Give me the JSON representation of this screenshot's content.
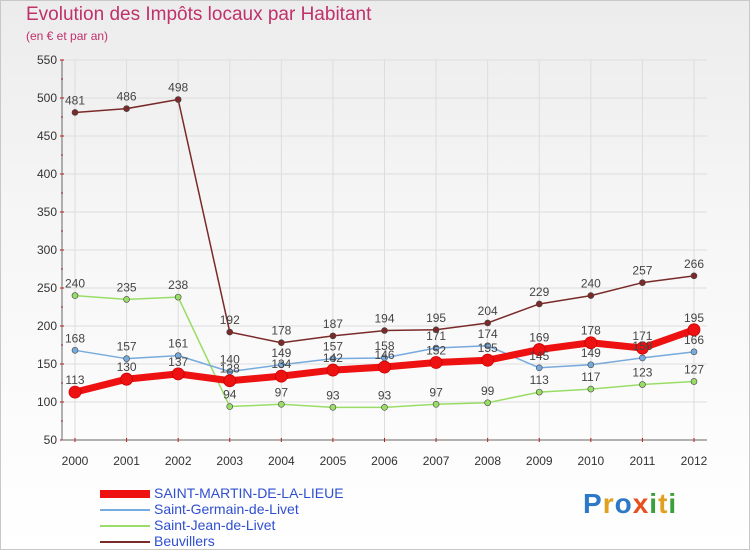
{
  "header": {
    "title": "Evolution des Impôts locaux par Habitant",
    "subtitle": "(en € et par an)"
  },
  "brand": {
    "logo_letters": [
      {
        "ch": "P",
        "color": "#2e78c8"
      },
      {
        "ch": "r",
        "color": "#e0a020"
      },
      {
        "ch": "o",
        "color": "#2e78c8"
      },
      {
        "ch": "x",
        "color": "#e8501e"
      },
      {
        "ch": "i",
        "color": "#3aa03a"
      },
      {
        "ch": "t",
        "color": "#e0a020"
      },
      {
        "ch": "i",
        "color": "#3aa03a"
      }
    ]
  },
  "chart_data": {
    "type": "line",
    "x": [
      "2000",
      "2001",
      "2002",
      "2003",
      "2004",
      "2005",
      "2006",
      "2007",
      "2008",
      "2009",
      "2010",
      "2011",
      "2012"
    ],
    "ylim": [
      50,
      550
    ],
    "yticks": [
      50,
      100,
      150,
      200,
      250,
      300,
      350,
      400,
      450,
      500,
      550
    ],
    "grid": true,
    "legend_position": "bottom-left",
    "series": [
      {
        "name": "Beuvillers",
        "color": "#7b2a2a",
        "values": [
          481,
          486,
          498,
          192,
          178,
          187,
          194,
          195,
          204,
          229,
          240,
          257,
          266
        ]
      },
      {
        "name": "Saint-Jean-de-Livet",
        "color": "#99dd66",
        "values": [
          240,
          235,
          238,
          94,
          97,
          93,
          93,
          97,
          99,
          113,
          117,
          123,
          127
        ]
      },
      {
        "name": "Saint-Germain-de-Livet",
        "color": "#77aadd",
        "values": [
          168,
          157,
          161,
          140,
          149,
          157,
          158,
          171,
          174,
          145,
          149,
          158,
          166
        ]
      },
      {
        "name": "SAINT-MARTIN-DE-LA-LIEUE",
        "color": "#ee1111",
        "values": [
          113,
          130,
          137,
          128,
          134,
          142,
          146,
          152,
          155,
          169,
          178,
          171,
          195
        ]
      }
    ],
    "legend": [
      "SAINT-MARTIN-DE-LA-LIEUE",
      "Saint-Germain-de-Livet",
      "Saint-Jean-de-Livet",
      "Beuvillers"
    ]
  }
}
